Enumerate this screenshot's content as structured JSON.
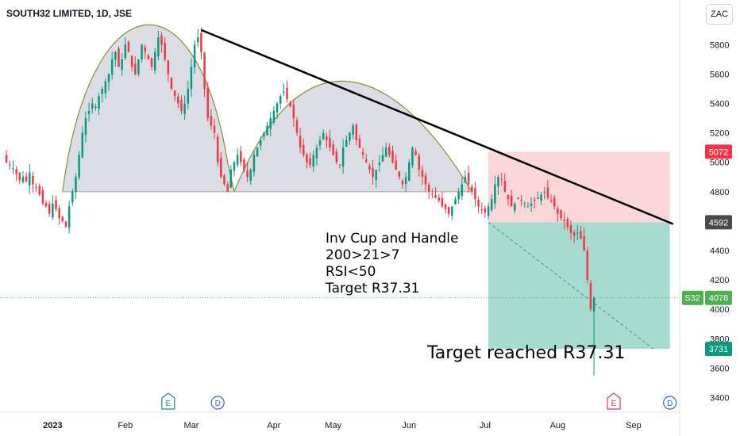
{
  "header": {
    "symbol_title": "SOUTH32 LIMITED, 1D, JSE",
    "currency": "ZAC"
  },
  "annotations": {
    "pattern_note": [
      "Inv Cup and Handle",
      "200>21>7",
      "RSI<50",
      "Target R37.31"
    ],
    "target_note": "Target reached R37.31"
  },
  "price_tags": {
    "stop": {
      "label": "5072",
      "value": 5072,
      "color": "#f23645"
    },
    "entry": {
      "label": "4592",
      "value": 4592,
      "color": "#4a4a4a"
    },
    "last_symbol": "S32",
    "last": {
      "label": "4078",
      "value": 4078,
      "color": "#4caf50"
    },
    "target": {
      "label": "3731",
      "value": 3731,
      "color": "#089981"
    }
  },
  "events": [
    {
      "label": "E",
      "type": "earnings",
      "date_index": 50
    },
    {
      "label": "D",
      "type": "dividend",
      "date_index": 65
    },
    {
      "label": "E",
      "type": "earnings",
      "date_index": 185
    },
    {
      "label": "D",
      "type": "dividend",
      "date_index": 202
    }
  ],
  "chart_data": {
    "type": "candlestick",
    "title": "SOUTH32 LIMITED, 1D, JSE",
    "y_unit": "ZAC",
    "ylim": [
      3300,
      6050
    ],
    "y_ticks": [
      3400,
      3600,
      3800,
      4000,
      4200,
      4400,
      4600,
      4800,
      5000,
      5200,
      5400,
      5600,
      5800,
      6000
    ],
    "x_ticks": [
      {
        "label": "2023",
        "bold": true,
        "index": 15
      },
      {
        "label": "Feb",
        "index": 37
      },
      {
        "label": "Mar",
        "index": 57
      },
      {
        "label": "Apr",
        "index": 82
      },
      {
        "label": "May",
        "index": 100
      },
      {
        "label": "Jun",
        "index": 123
      },
      {
        "label": "Jul",
        "index": 146
      },
      {
        "label": "Aug",
        "index": 168
      },
      {
        "label": "Sep",
        "index": 191
      }
    ],
    "x_range": [
      0,
      204
    ],
    "ohlc_closes": [
      5050,
      5000,
      4980,
      4960,
      4920,
      4880,
      4900,
      4870,
      4930,
      4850,
      4830,
      4780,
      4720,
      4700,
      4650,
      4720,
      4680,
      4620,
      4600,
      4560,
      4700,
      4800,
      4900,
      5050,
      5200,
      5300,
      5350,
      5400,
      5380,
      5450,
      5500,
      5550,
      5600,
      5700,
      5750,
      5650,
      5700,
      5800,
      5750,
      5650,
      5600,
      5700,
      5800,
      5750,
      5700,
      5650,
      5750,
      5850,
      5800,
      5700,
      5600,
      5500,
      5450,
      5400,
      5350,
      5400,
      5500,
      5650,
      5800,
      5850,
      5750,
      5500,
      5300,
      5250,
      5200,
      5000,
      4900,
      4850,
      4800,
      4950,
      5000,
      5050,
      5000,
      4950,
      4900,
      4950,
      5050,
      5100,
      5150,
      5200,
      5250,
      5300,
      5350,
      5400,
      5450,
      5480,
      5430,
      5380,
      5300,
      5200,
      5100,
      5050,
      5000,
      4980,
      5050,
      5100,
      5150,
      5200,
      5150,
      5100,
      5050,
      5000,
      4980,
      5100,
      5150,
      5200,
      5250,
      5150,
      5100,
      5050,
      5000,
      4950,
      4900,
      4950,
      5000,
      5050,
      5100,
      5050,
      5000,
      4950,
      4900,
      4850,
      4900,
      5000,
      5100,
      5050,
      4950,
      4900,
      4850,
      4800,
      4780,
      4760,
      4740,
      4700,
      4680,
      4650,
      4700,
      4750,
      4800,
      4850,
      4900,
      4850,
      4800,
      4750,
      4700,
      4680,
      4660,
      4700,
      4750,
      4850,
      4900,
      4880,
      4800,
      4750,
      4700,
      4720,
      4760,
      4740,
      4720,
      4700,
      4720,
      4740,
      4760,
      4780,
      4800,
      4760,
      4740,
      4700,
      4650,
      4620,
      4600,
      4560,
      4520,
      4500,
      4520,
      4480,
      4400,
      4200,
      4000,
      4078
    ],
    "trendline": {
      "from": {
        "index": 60,
        "value": 5900
      },
      "to": {
        "index": 203,
        "value": 4580
      }
    },
    "cup_neckline": 4800,
    "positions": {
      "entry": 4592,
      "stop": 5072,
      "target": 3731
    },
    "current_price": 4078
  }
}
